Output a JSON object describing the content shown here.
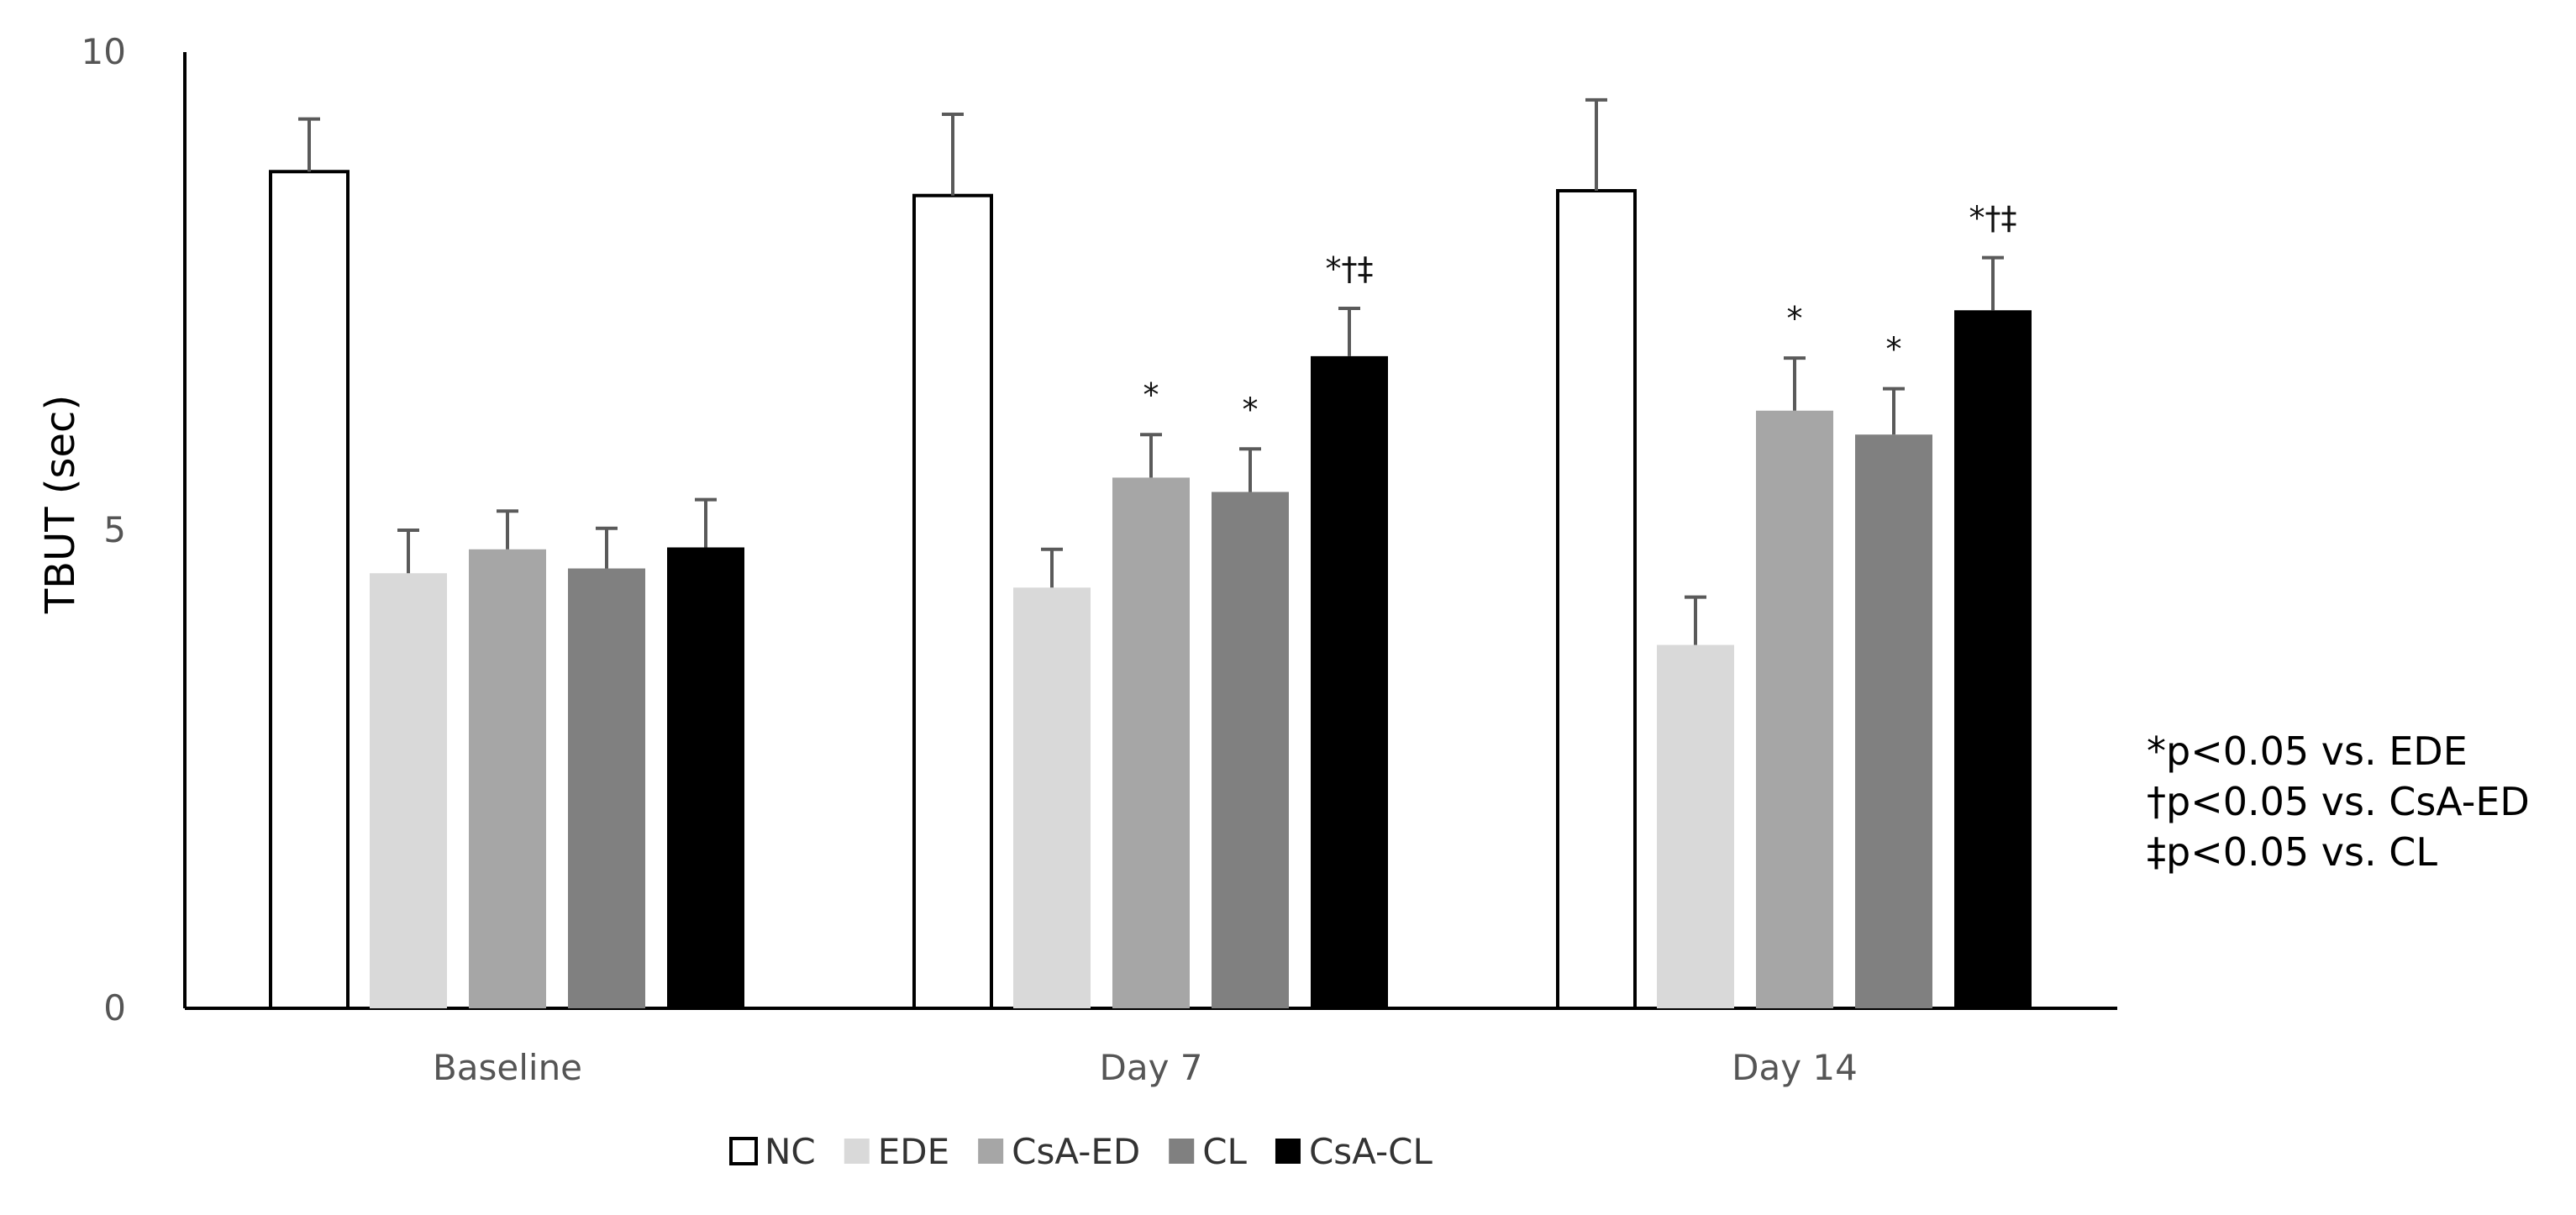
{
  "chart_data": {
    "type": "bar",
    "title": "",
    "xlabel": "",
    "ylabel": "TBUT (sec)",
    "ylim": [
      0,
      10
    ],
    "yticks": [
      "0",
      "5",
      "10"
    ],
    "grid": false,
    "legend_position": "bottom",
    "categories": [
      "Baseline",
      "Day 7",
      "Day 14"
    ],
    "series": [
      {
        "name": "NC",
        "color": "#ffffff",
        "values": [
          8.75,
          8.5,
          8.55
        ],
        "errors": [
          0.55,
          0.85,
          0.95
        ],
        "markers": [
          "",
          "",
          ""
        ]
      },
      {
        "name": "EDE",
        "color": "#d9d9d9",
        "values": [
          4.55,
          4.4,
          3.8
        ],
        "errors": [
          0.45,
          0.4,
          0.5
        ],
        "markers": [
          "",
          "",
          ""
        ]
      },
      {
        "name": "CsA-ED",
        "color": "#a6a6a6",
        "values": [
          4.8,
          5.55,
          6.25
        ],
        "errors": [
          0.4,
          0.45,
          0.55
        ],
        "markers": [
          "",
          "*",
          "*"
        ]
      },
      {
        "name": "CL",
        "color": "#808080",
        "values": [
          4.6,
          5.4,
          6.0
        ],
        "errors": [
          0.42,
          0.45,
          0.48
        ],
        "markers": [
          "",
          "*",
          "*"
        ]
      },
      {
        "name": "CsA-CL",
        "color": "#000000",
        "values": [
          4.82,
          6.82,
          7.3
        ],
        "errors": [
          0.5,
          0.5,
          0.55
        ],
        "markers": [
          "",
          "*†‡",
          "*†‡"
        ]
      }
    ],
    "annotations": [
      "*p<0.05 vs. EDE",
      "†p<0.05 vs. CsA-ED",
      "‡p<0.05 vs. CL"
    ]
  }
}
